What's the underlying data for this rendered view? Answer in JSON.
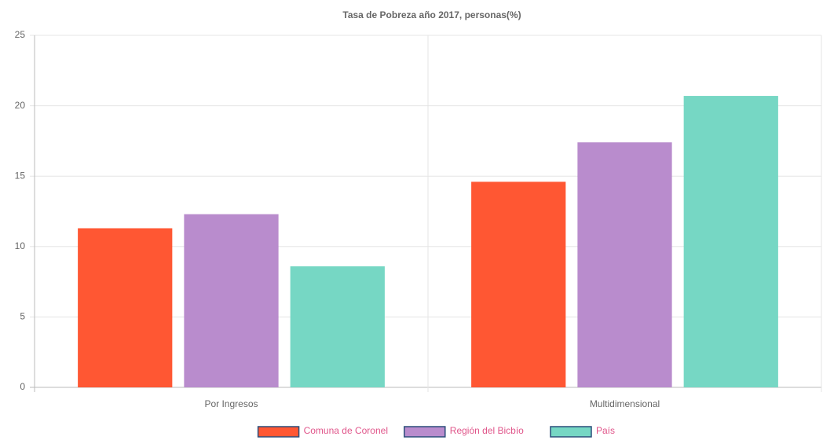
{
  "chart_data": {
    "type": "bar",
    "title": "Tasa de Pobreza año 2017, personas(%)",
    "categories": [
      "Por Ingresos",
      "Multidimensional"
    ],
    "series": [
      {
        "name": "Comuna de Coronel",
        "color": "#ff5733",
        "values": [
          11.3,
          14.6
        ]
      },
      {
        "name": "Región del Bicbío",
        "color": "#b98ccd",
        "values": [
          12.3,
          17.4
        ]
      },
      {
        "name": "País",
        "color": "#76d7c4",
        "values": [
          8.6,
          20.7
        ]
      }
    ],
    "ylim": [
      0,
      25
    ],
    "yticks": [
      0,
      5,
      10,
      15,
      20,
      25
    ],
    "grid": true,
    "legend": "bottom"
  }
}
